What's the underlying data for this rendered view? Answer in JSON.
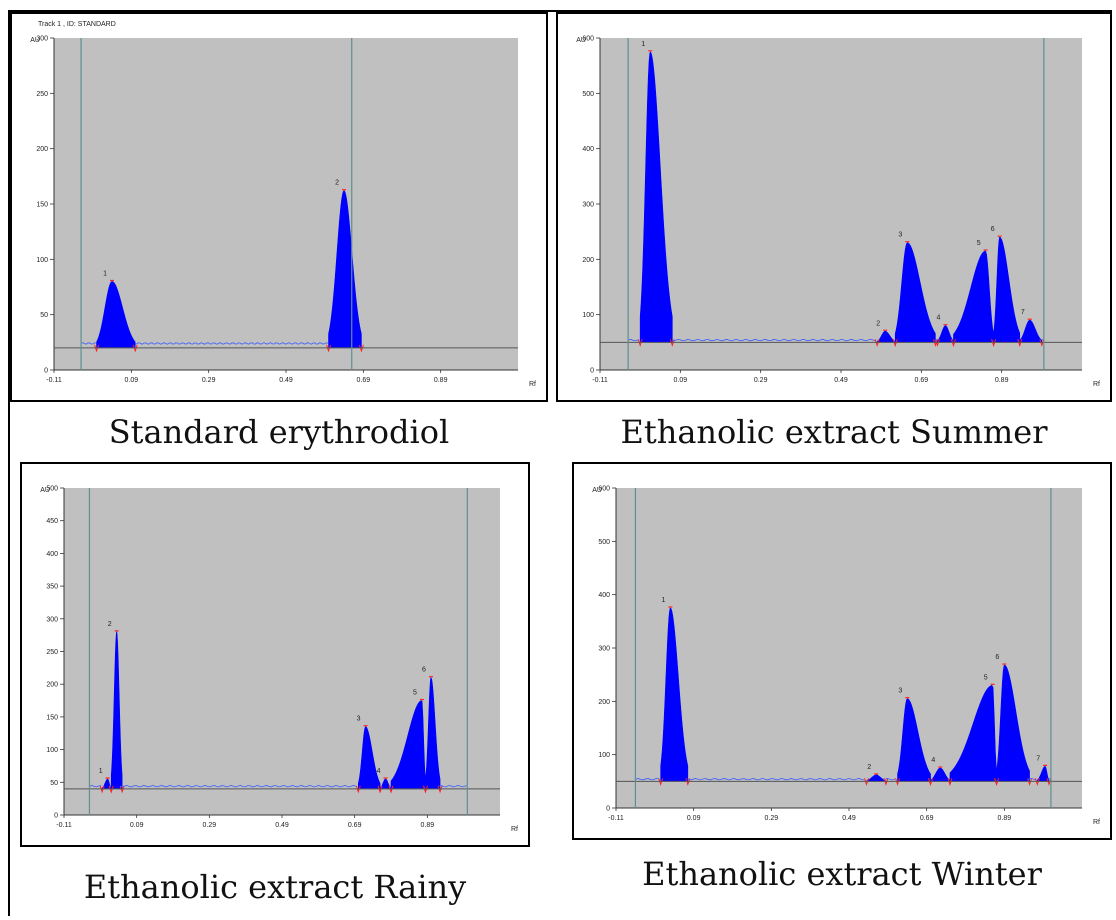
{
  "captions": {
    "p1": "Standard erythrodiol",
    "p2": "Ethanolic extract Summer",
    "p3": "Ethanolic extract Rainy",
    "p4": "Ethanolic extract Winter"
  },
  "colors": {
    "plot_bg": "#c0c0c0",
    "peak_fill": "#0000ff",
    "trace": "#3b5bff",
    "baseline": "#555555",
    "marker": "#ff2020",
    "cursor": "#5f8f8f"
  },
  "chart_data": [
    {
      "type": "line",
      "title": "Track 1 , ID: STANDARD",
      "ylabel": "AU",
      "xlabel": "Rf",
      "xlim": [
        -0.11,
        1.09
      ],
      "ylim": [
        0,
        300
      ],
      "xticks": [
        "-0.11",
        "0.09",
        "0.29",
        "0.49",
        "0.69",
        "0.89"
      ],
      "yticks": [
        "0",
        "50",
        "100",
        "150",
        "200",
        "250",
        "300"
      ],
      "baseline": 20,
      "cursors": [
        -0.04,
        0.66
      ],
      "peaks": [
        {
          "label": "1",
          "rf": 0.04,
          "height": 80,
          "start": 0.0,
          "end": 0.1
        },
        {
          "label": "2",
          "rf": 0.64,
          "height": 162,
          "start": 0.6,
          "end": 0.685
        }
      ]
    },
    {
      "type": "line",
      "title": "",
      "ylabel": "AU",
      "xlabel": "Rf",
      "xlim": [
        -0.11,
        1.09
      ],
      "ylim": [
        0,
        600
      ],
      "xticks": [
        "-0.11",
        "0.09",
        "0.29",
        "0.49",
        "0.69",
        "0.89"
      ],
      "yticks": [
        "0",
        "100",
        "200",
        "300",
        "400",
        "500",
        "600"
      ],
      "baseline": 50,
      "cursors": [
        -0.04,
        0.995
      ],
      "peaks": [
        {
          "label": "1",
          "rf": 0.015,
          "height": 575,
          "start": -0.01,
          "end": 0.07
        },
        {
          "label": "2",
          "rf": 0.6,
          "height": 70,
          "start": 0.58,
          "end": 0.625
        },
        {
          "label": "3",
          "rf": 0.655,
          "height": 230,
          "start": 0.625,
          "end": 0.725
        },
        {
          "label": "4",
          "rf": 0.75,
          "height": 80,
          "start": 0.73,
          "end": 0.77
        },
        {
          "label": "5",
          "rf": 0.85,
          "height": 215,
          "start": 0.77,
          "end": 0.87
        },
        {
          "label": "6",
          "rf": 0.885,
          "height": 240,
          "start": 0.87,
          "end": 0.935
        },
        {
          "label": "7",
          "rf": 0.96,
          "height": 90,
          "start": 0.935,
          "end": 0.99
        }
      ]
    },
    {
      "type": "line",
      "title": "",
      "ylabel": "AU",
      "xlabel": "Rf",
      "xlim": [
        -0.11,
        1.09
      ],
      "ylim": [
        0,
        500
      ],
      "xticks": [
        "-0.11",
        "0.09",
        "0.29",
        "0.49",
        "0.69",
        "0.89"
      ],
      "yticks": [
        "0",
        "50",
        "100",
        "150",
        "200",
        "250",
        "300",
        "350",
        "400",
        "450",
        "500"
      ],
      "baseline": 40,
      "cursors": [
        -0.04,
        1.0
      ],
      "peaks": [
        {
          "label": "1",
          "rf": 0.01,
          "height": 55,
          "start": -0.005,
          "end": 0.02
        },
        {
          "label": "2",
          "rf": 0.035,
          "height": 280,
          "start": 0.02,
          "end": 0.05
        },
        {
          "label": "3",
          "rf": 0.72,
          "height": 135,
          "start": 0.7,
          "end": 0.76
        },
        {
          "label": "4",
          "rf": 0.775,
          "height": 55,
          "start": 0.76,
          "end": 0.79
        },
        {
          "label": "5",
          "rf": 0.875,
          "height": 175,
          "start": 0.79,
          "end": 0.885
        },
        {
          "label": "6",
          "rf": 0.9,
          "height": 210,
          "start": 0.885,
          "end": 0.925
        }
      ]
    },
    {
      "type": "line",
      "title": "",
      "ylabel": "AU",
      "xlabel": "Rf",
      "xlim": [
        -0.11,
        1.09
      ],
      "ylim": [
        0,
        600
      ],
      "xticks": [
        "-0.11",
        "0.09",
        "0.29",
        "0.49",
        "0.69",
        "0.89"
      ],
      "yticks": [
        "0",
        "100",
        "200",
        "300",
        "400",
        "500",
        "600"
      ],
      "baseline": 50,
      "cursors": [
        -0.06,
        1.01
      ],
      "peaks": [
        {
          "label": "1",
          "rf": 0.03,
          "height": 375,
          "start": 0.005,
          "end": 0.075
        },
        {
          "label": "2",
          "rf": 0.56,
          "height": 62,
          "start": 0.535,
          "end": 0.585
        },
        {
          "label": "3",
          "rf": 0.64,
          "height": 205,
          "start": 0.615,
          "end": 0.7
        },
        {
          "label": "4",
          "rf": 0.725,
          "height": 75,
          "start": 0.7,
          "end": 0.75
        },
        {
          "label": "5",
          "rf": 0.86,
          "height": 230,
          "start": 0.75,
          "end": 0.87
        },
        {
          "label": "6",
          "rf": 0.89,
          "height": 268,
          "start": 0.87,
          "end": 0.955
        },
        {
          "label": "7",
          "rf": 0.995,
          "height": 78,
          "start": 0.975,
          "end": 1.005
        }
      ]
    }
  ]
}
